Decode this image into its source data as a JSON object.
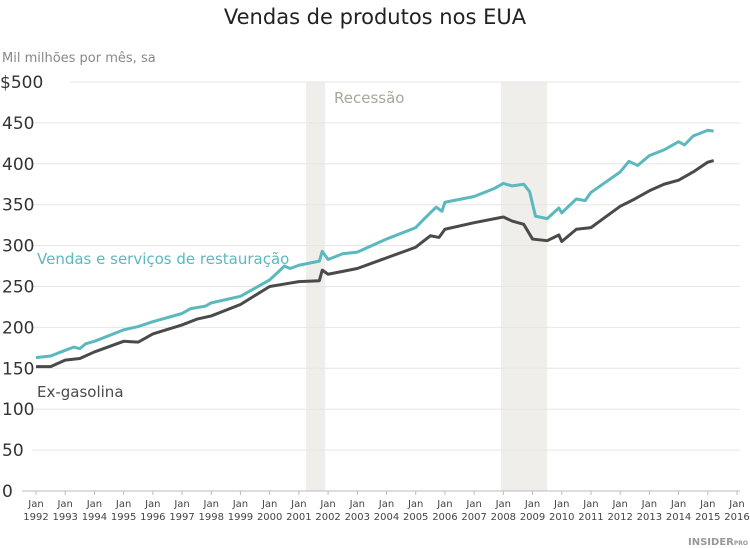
{
  "chart_data": {
    "type": "line",
    "title": "Vendas de produtos nos EUA",
    "ylabel": "Mil milhões por mês, sa",
    "ylim": [
      0,
      500
    ],
    "yticks": [
      "0",
      "50",
      "100",
      "150",
      "200",
      "250",
      "300",
      "350",
      "400",
      "450",
      "$500"
    ],
    "xlim": [
      1992,
      2016
    ],
    "xticks": [
      {
        "m": "Jan",
        "y": "1992"
      },
      {
        "m": "Jan",
        "y": "1993"
      },
      {
        "m": "Jan",
        "y": "1994"
      },
      {
        "m": "Jan",
        "y": "1995"
      },
      {
        "m": "Jan",
        "y": "1996"
      },
      {
        "m": "Jan",
        "y": "1997"
      },
      {
        "m": "Jan",
        "y": "1998"
      },
      {
        "m": "Jan",
        "y": "1999"
      },
      {
        "m": "Jan",
        "y": "2000"
      },
      {
        "m": "Jan",
        "y": "2001"
      },
      {
        "m": "Jan",
        "y": "2002"
      },
      {
        "m": "Jan",
        "y": "2003"
      },
      {
        "m": "Jan",
        "y": "2004"
      },
      {
        "m": "Jan",
        "y": "2005"
      },
      {
        "m": "Jan",
        "y": "2006"
      },
      {
        "m": "Jan",
        "y": "2007"
      },
      {
        "m": "Jan",
        "y": "2008"
      },
      {
        "m": "Jan",
        "y": "2009"
      },
      {
        "m": "Jan",
        "y": "2010"
      },
      {
        "m": "Jan",
        "y": "2011"
      },
      {
        "m": "Jan",
        "y": "2012"
      },
      {
        "m": "Jan",
        "y": "2013"
      },
      {
        "m": "Jan",
        "y": "2014"
      },
      {
        "m": "Jan",
        "y": "2015"
      },
      {
        "m": "Jan",
        "y": "2016"
      }
    ],
    "recession_label": "Recessão",
    "recessions": [
      [
        2001.25,
        2001.9
      ],
      [
        2007.92,
        2009.5
      ]
    ],
    "grid": true,
    "series": [
      {
        "name": "Vendas e serviços de restauração",
        "color": "#5bb8bf",
        "x": [
          1992,
          1992.5,
          1993,
          1993.3,
          1993.5,
          1993.7,
          1994,
          1995,
          1995.5,
          1996,
          1997,
          1997.3,
          1997.8,
          1998,
          1999,
          2000,
          2000.3,
          2000.5,
          2000.7,
          2001,
          2001.7,
          2001.8,
          2002,
          2002.5,
          2003,
          2004,
          2005,
          2005.3,
          2005.7,
          2005.9,
          2006,
          2007,
          2007.7,
          2008,
          2008.3,
          2008.7,
          2008.9,
          2009.1,
          2009.5,
          2009.9,
          2010,
          2010.5,
          2010.8,
          2011,
          2012,
          2012.3,
          2012.6,
          2013,
          2013.5,
          2014,
          2014.2,
          2014.5,
          2015,
          2015.2
        ],
        "values": [
          163,
          165,
          172,
          176,
          174,
          180,
          183,
          197,
          201,
          207,
          217,
          223,
          226,
          230,
          238,
          258,
          268,
          275,
          272,
          276,
          281,
          293,
          283,
          290,
          292,
          308,
          322,
          333,
          347,
          342,
          353,
          360,
          370,
          376,
          373,
          375,
          366,
          336,
          333,
          346,
          340,
          357,
          355,
          365,
          390,
          403,
          398,
          410,
          417,
          427,
          423,
          434,
          441,
          440
        ]
      },
      {
        "name": "Ex-gasolina",
        "color": "#4a4a4a",
        "x": [
          1992,
          1992.5,
          1993,
          1993.5,
          1994,
          1995,
          1995.5,
          1996,
          1997,
          1997.5,
          1998,
          1999,
          2000,
          2000.5,
          2001,
          2001.7,
          2001.8,
          2002,
          2003,
          2004,
          2005,
          2005.5,
          2005.8,
          2006,
          2007,
          2008,
          2008.3,
          2008.7,
          2009,
          2009.5,
          2009.9,
          2010,
          2010.5,
          2011,
          2011.5,
          2012,
          2012.5,
          2013,
          2013.5,
          2014,
          2014.5,
          2015,
          2015.2
        ],
        "values": [
          152,
          152,
          160,
          162,
          170,
          183,
          182,
          192,
          203,
          210,
          214,
          228,
          250,
          253,
          256,
          257,
          270,
          265,
          272,
          285,
          298,
          312,
          310,
          320,
          328,
          335,
          330,
          326,
          308,
          306,
          313,
          305,
          320,
          322,
          335,
          348,
          357,
          367,
          375,
          380,
          390,
          402,
          404
        ]
      }
    ]
  },
  "logo": "INSIDER PRO"
}
